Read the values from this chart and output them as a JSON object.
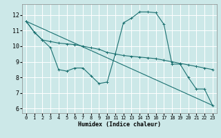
{
  "xlabel": "Humidex (Indice chaleur)",
  "background_color": "#cce8e8",
  "grid_color": "#ffffff",
  "line_color": "#1a7070",
  "xlim": [
    -0.5,
    23.5
  ],
  "ylim": [
    5.7,
    12.7
  ],
  "xticks": [
    0,
    1,
    2,
    3,
    4,
    5,
    6,
    7,
    8,
    9,
    10,
    11,
    12,
    13,
    14,
    15,
    16,
    17,
    18,
    19,
    20,
    21,
    22,
    23
  ],
  "yticks": [
    6,
    7,
    8,
    9,
    10,
    11,
    12
  ],
  "line1_x": [
    0,
    1,
    2,
    3,
    4,
    5,
    6,
    7,
    8,
    9,
    10,
    11,
    12,
    13,
    14,
    15,
    16,
    17,
    18,
    19,
    20,
    21,
    22,
    23
  ],
  "line1_y": [
    11.6,
    10.9,
    10.4,
    9.9,
    8.5,
    8.4,
    8.6,
    8.6,
    8.1,
    7.6,
    7.7,
    9.5,
    11.5,
    11.8,
    12.2,
    12.2,
    12.15,
    11.4,
    8.85,
    8.85,
    8.0,
    7.25,
    7.25,
    6.2
  ],
  "line2_x": [
    0,
    1,
    2,
    3,
    4,
    5,
    6,
    7,
    8,
    9,
    10,
    11,
    12,
    13,
    14,
    15,
    16,
    17,
    18,
    19,
    20,
    21,
    22,
    23
  ],
  "line2_y": [
    11.6,
    10.9,
    10.4,
    10.3,
    10.2,
    10.15,
    10.1,
    10.0,
    9.9,
    9.8,
    9.6,
    9.5,
    9.4,
    9.35,
    9.3,
    9.25,
    9.2,
    9.1,
    9.0,
    8.9,
    8.8,
    8.7,
    8.6,
    8.5
  ],
  "line3_x": [
    0,
    23
  ],
  "line3_y": [
    11.6,
    6.2
  ]
}
